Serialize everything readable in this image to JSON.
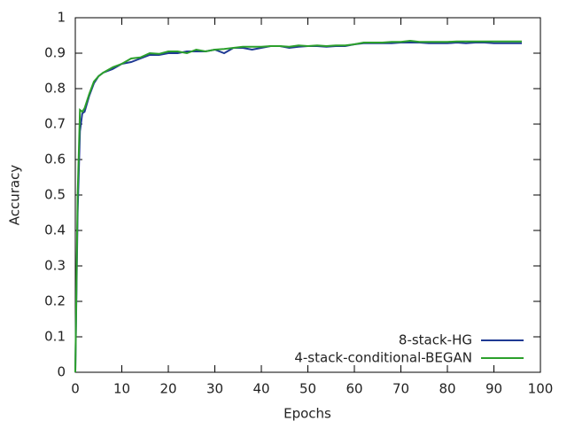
{
  "chart_data": {
    "type": "line",
    "x_label": "Epochs",
    "y_label": "Accuracy",
    "x": [
      0,
      0.5,
      1,
      1.5,
      2,
      3,
      4,
      5,
      6,
      8,
      10,
      12,
      14,
      16,
      18,
      20,
      22,
      24,
      26,
      28,
      30,
      32,
      34,
      36,
      38,
      40,
      42,
      44,
      46,
      48,
      50,
      52,
      54,
      56,
      58,
      60,
      62,
      64,
      66,
      68,
      70,
      72,
      74,
      76,
      78,
      80,
      82,
      84,
      86,
      88,
      90,
      92,
      94,
      96
    ],
    "series": [
      {
        "name": "8-stack-HG",
        "color": "#1f3a93",
        "values": [
          0,
          0.45,
          0.68,
          0.73,
          0.735,
          0.78,
          0.815,
          0.835,
          0.845,
          0.855,
          0.87,
          0.875,
          0.885,
          0.895,
          0.895,
          0.9,
          0.9,
          0.905,
          0.905,
          0.905,
          0.91,
          0.9,
          0.915,
          0.915,
          0.91,
          0.915,
          0.92,
          0.92,
          0.915,
          0.918,
          0.92,
          0.92,
          0.918,
          0.92,
          0.92,
          0.925,
          0.928,
          0.928,
          0.928,
          0.928,
          0.93,
          0.93,
          0.93,
          0.928,
          0.928,
          0.928,
          0.93,
          0.928,
          0.93,
          0.93,
          0.928,
          0.928,
          0.928,
          0.928
        ]
      },
      {
        "name": "4-stack-conditional-BEGAN",
        "color": "#2ca02c",
        "values": [
          0,
          0.5,
          0.74,
          0.735,
          0.745,
          0.785,
          0.82,
          0.835,
          0.845,
          0.86,
          0.87,
          0.885,
          0.888,
          0.9,
          0.898,
          0.905,
          0.905,
          0.9,
          0.91,
          0.905,
          0.91,
          0.912,
          0.915,
          0.918,
          0.918,
          0.918,
          0.92,
          0.92,
          0.918,
          0.922,
          0.92,
          0.922,
          0.92,
          0.922,
          0.922,
          0.925,
          0.93,
          0.93,
          0.93,
          0.932,
          0.932,
          0.935,
          0.932,
          0.932,
          0.932,
          0.932,
          0.933,
          0.933,
          0.933,
          0.933,
          0.933,
          0.933,
          0.933,
          0.933
        ]
      }
    ],
    "xlim": [
      0,
      100
    ],
    "xticks": [
      0,
      10,
      20,
      30,
      40,
      50,
      60,
      70,
      80,
      90,
      100
    ],
    "ylim": [
      0,
      1
    ],
    "yticks": [
      0,
      0.1,
      0.2,
      0.3,
      0.4,
      0.5,
      0.6,
      0.7,
      0.8,
      0.9,
      1
    ],
    "legend": "bottom-right"
  }
}
